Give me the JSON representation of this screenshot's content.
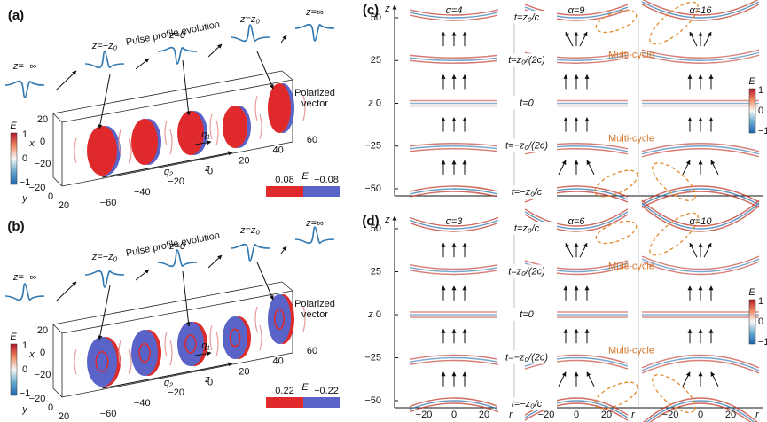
{
  "panels": [
    {
      "label": "(a)",
      "title": "Pulse profile evolution",
      "stages": [
        "z=−∞",
        "z=−z₀",
        "z=0",
        "z=z₀",
        "z=∞"
      ],
      "annotation": [
        "Polarized",
        "vector"
      ],
      "q": [
        "q₁",
        "q₂"
      ],
      "colorbar": {
        "label": "E",
        "ticks": [
          "1",
          "0",
          "−1"
        ]
      },
      "legend": {
        "label": "E",
        "values": [
          "0.08",
          "−0.08"
        ]
      },
      "x_axis": {
        "label": "x",
        "ticks": [
          "20",
          "0",
          "−20"
        ]
      },
      "y_axis": {
        "label": "y",
        "ticks": [
          "−20",
          "0",
          "20"
        ]
      },
      "z_axis": {
        "label": "z",
        "ticks": [
          "−60",
          "−40",
          "−20",
          "0",
          "20",
          "40",
          "60"
        ]
      }
    },
    {
      "label": "(b)",
      "title": "Pulse profile evolution",
      "stages": [
        "z=−∞",
        "z=−z₀",
        "z=0",
        "z=z₀",
        "z=∞"
      ],
      "annotation": [
        "Polarized",
        "vector"
      ],
      "q": [
        "q₁",
        "q₂"
      ],
      "colorbar": {
        "label": "E",
        "ticks": [
          "1",
          "0",
          "−1"
        ]
      },
      "legend": {
        "label": "E",
        "values": [
          "0.22",
          "−0.22"
        ]
      },
      "x_axis": {
        "label": "x",
        "ticks": [
          "20",
          "0",
          "−20"
        ]
      },
      "y_axis": {
        "label": "y",
        "ticks": [
          "−20",
          "0",
          "20"
        ]
      },
      "z_axis": {
        "label": "z",
        "ticks": [
          "−60",
          "−40",
          "−20",
          "0",
          "20",
          "40",
          "60"
        ]
      }
    }
  ],
  "maps": [
    {
      "label": "(c)",
      "alphas": [
        "α=4",
        "α=9",
        "α=16"
      ],
      "times": [
        "t=z₀/c",
        "t=z₀/(2c)",
        "t=0",
        "t=−z₀/(2c)",
        "t=−z₀/c"
      ],
      "note": "Multi-cycle",
      "z_axis": {
        "label": "z",
        "ticks": [
          "50",
          "25",
          "0",
          "−25",
          "−50"
        ]
      },
      "colorbar": {
        "label": "E",
        "ticks": [
          "1",
          "0",
          "−1"
        ]
      }
    },
    {
      "label": "(d)",
      "alphas": [
        "α=3",
        "α=6",
        "α=10"
      ],
      "times": [
        "t=z₀/c",
        "t=z₀/(2c)",
        "t=0",
        "t=−z₀/(2c)",
        "t=−z₀/c"
      ],
      "note": "Multi-cycle",
      "z_axis": {
        "label": "z",
        "ticks": [
          "50",
          "25",
          "0",
          "−25",
          "−50"
        ]
      },
      "r_axis": {
        "label": "r",
        "ticks": [
          "−20",
          "0",
          "20"
        ]
      },
      "colorbar": {
        "label": "E",
        "ticks": [
          "1",
          "0",
          "−1"
        ]
      }
    }
  ]
}
